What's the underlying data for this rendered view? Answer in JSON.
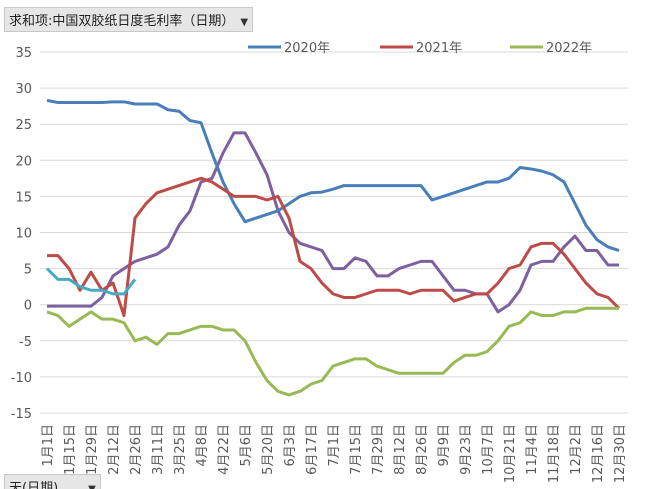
{
  "pivot_field": "求和项:中国双胶纸日度毛利率（日期）",
  "row_field": "天(日期)",
  "chart_data": {
    "type": "line",
    "categories": [
      "1月1日",
      null,
      "1月15日",
      null,
      "1月29日",
      null,
      "2月12日",
      null,
      "2月26日",
      null,
      "3月11日",
      null,
      "3月25日",
      null,
      "4月8日",
      null,
      "4月22日",
      null,
      "5月6日",
      null,
      "5月20日",
      null,
      "6月3日",
      null,
      "6月17日",
      null,
      "7月1日",
      null,
      "7月15日",
      null,
      "7月29日",
      null,
      "8月12日",
      null,
      "8月26日",
      null,
      "9月9日",
      null,
      "9月23日",
      null,
      "10月7日",
      null,
      "10月21日",
      null,
      "11月4日",
      null,
      "11月18日",
      null,
      "12月2日",
      null,
      "12月16日",
      null,
      "12月30日"
    ],
    "series": [
      {
        "name": "2020年",
        "color": "#4a7ebb",
        "values": [
          28.3,
          28,
          28,
          28,
          28,
          28,
          28.1,
          28.1,
          27.8,
          27.8,
          27.8,
          27,
          26.8,
          25.5,
          25.2,
          21,
          17,
          14,
          11.5,
          12,
          12.5,
          13,
          14,
          15,
          15.5,
          15.6,
          16,
          16.5,
          16.5,
          16.5,
          16.5,
          16.5,
          16.5,
          16.5,
          16.5,
          14.5,
          15,
          15.5,
          16,
          16.5,
          17,
          17,
          17.5,
          19,
          18.8,
          18.5,
          18,
          17,
          14,
          11,
          9,
          8,
          7.5
        ]
      },
      {
        "name": "2021年",
        "color": "#be4b48",
        "values": [
          6.8,
          6.8,
          5,
          2,
          4.5,
          2,
          3,
          -1.5,
          12,
          14,
          15.5,
          16,
          16.5,
          17,
          17.5,
          17,
          16,
          15,
          15,
          15,
          14.5,
          15,
          12,
          6,
          5,
          3,
          1.5,
          1,
          1,
          1.5,
          2,
          2,
          2,
          1.5,
          2,
          2,
          2,
          0.5,
          1,
          1.5,
          1.5,
          3,
          5,
          5.5,
          8,
          8.5,
          8.5,
          7,
          5,
          3,
          1.5,
          1,
          -0.5
        ]
      },
      {
        "name": "2022年",
        "color": "#98b954",
        "values": [
          -1,
          -1.5,
          -3,
          -2,
          -1,
          -2,
          -2,
          -2.5,
          -5,
          -4.5,
          -5.5,
          -4,
          -4,
          -3.5,
          -3,
          -3,
          -3.5,
          -3.5,
          -5,
          -8,
          -10.5,
          -12,
          -12.5,
          -12,
          -11,
          -10.5,
          -8.5,
          -8,
          -7.5,
          -7.5,
          -8.5,
          -9,
          -9.5,
          -9.5,
          -9.5,
          -9.5,
          -9.5,
          -8,
          -7,
          -7,
          -6.5,
          -5,
          -3,
          -2.5,
          -1,
          -1.5,
          -1.5,
          -1,
          -1,
          -0.5,
          -0.5,
          -0.5,
          -0.5
        ]
      },
      {
        "color": "#7d60a0",
        "values": [
          -0.2,
          -0.2,
          -0.2,
          -0.2,
          -0.2,
          1,
          4,
          5,
          6,
          6.5,
          7,
          8,
          11,
          13,
          17,
          17.5,
          21,
          23.8,
          23.8,
          21,
          18,
          13,
          10,
          8.5,
          8,
          7.5,
          5,
          5,
          6.5,
          6,
          4,
          4,
          5,
          5.5,
          6,
          6,
          4,
          2,
          2,
          1.5,
          1.5,
          -1,
          0,
          2,
          5.5,
          6,
          6,
          8,
          9.5,
          7.5,
          7.5,
          5.5,
          5.5
        ]
      },
      {
        "color": "#46aac5",
        "values": [
          5,
          3.5,
          3.5,
          2.5,
          2,
          2,
          1.5,
          1.5,
          3.5,
          null,
          null,
          null,
          null,
          null,
          null,
          null,
          null,
          null,
          null,
          null,
          null,
          null,
          null,
          null,
          null,
          null,
          null,
          null,
          null,
          null,
          null,
          null,
          null,
          null,
          null,
          null,
          null,
          null,
          null,
          null,
          null,
          null,
          null,
          null,
          null,
          null,
          null,
          null,
          null,
          null,
          null,
          null,
          null
        ]
      }
    ],
    "ylim": [
      -15,
      35
    ],
    "yticks": [
      -15,
      -10,
      -5,
      0,
      5,
      10,
      15,
      20,
      25,
      30,
      35
    ],
    "grid": true
  }
}
